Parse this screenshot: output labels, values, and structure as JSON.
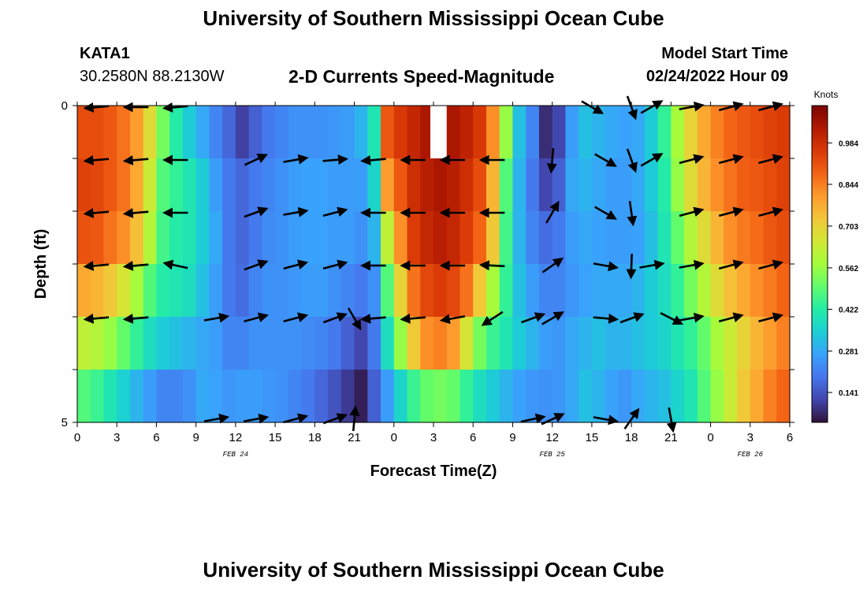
{
  "header": {
    "title": "University of Southern Mississippi Ocean Cube",
    "station": "KATA1",
    "coords": "30.2580N  88.2130W",
    "subtitle": "2-D Currents Speed-Magnitude",
    "model_start_label": "Model Start Time",
    "model_start_value": "02/24/2022 Hour 09"
  },
  "footer": {
    "title": "University of Southern Mississippi Ocean Cube"
  },
  "chart_data": {
    "type": "heatmap",
    "title": "2-D Currents Speed-Magnitude",
    "xlabel": "Forecast Time(Z)",
    "ylabel": "Depth (ft)",
    "x_ticks": [
      "0",
      "3",
      "6",
      "9",
      "12",
      "15",
      "18",
      "21",
      "0",
      "3",
      "6",
      "9",
      "12",
      "15",
      "18",
      "21",
      "0",
      "3",
      "6"
    ],
    "date_labels": [
      {
        "label": "FEB 24",
        "at_hour": 12
      },
      {
        "label": "FEB 25",
        "at_hour": 36
      },
      {
        "label": "FEB 26",
        "at_hour": 51
      }
    ],
    "y_ticks": [
      "0",
      "5"
    ],
    "ylim": [
      0,
      5
    ],
    "x_hours_range": [
      0,
      54
    ],
    "colorbar": {
      "unit": "Knots",
      "ticks": [
        "0.984",
        "0.844",
        "0.703",
        "0.562",
        "0.422",
        "0.281",
        "0.141"
      ],
      "tick_values": [
        0.984,
        0.844,
        0.703,
        0.562,
        0.422,
        0.281,
        0.141
      ],
      "range": [
        0.04,
        1.11
      ],
      "colors": [
        "#30123b",
        "#4145ab",
        "#4675ed",
        "#39a2fc",
        "#1bcfd4",
        "#24eca6",
        "#61fc6c",
        "#a4fc3b",
        "#d1e834",
        "#f3c63a",
        "#fe9b2d",
        "#f36315",
        "#d93806",
        "#b11901",
        "#7a0403"
      ]
    },
    "speed_columns": [
      {
        "hour": 0,
        "speeds": [
          0.92,
          0.94,
          0.91,
          0.78,
          0.62,
          0.48
        ]
      },
      {
        "hour": 1,
        "speeds": [
          0.92,
          0.93,
          0.9,
          0.76,
          0.6,
          0.45
        ]
      },
      {
        "hour": 2,
        "speeds": [
          0.9,
          0.9,
          0.86,
          0.72,
          0.56,
          0.4
        ]
      },
      {
        "hour": 3,
        "speeds": [
          0.86,
          0.86,
          0.82,
          0.66,
          0.5,
          0.35
        ]
      },
      {
        "hour": 4,
        "speeds": [
          0.8,
          0.78,
          0.74,
          0.58,
          0.44,
          0.3
        ]
      },
      {
        "hour": 5,
        "speeds": [
          0.68,
          0.64,
          0.6,
          0.48,
          0.38,
          0.26
        ]
      },
      {
        "hour": 6,
        "speeds": [
          0.52,
          0.48,
          0.46,
          0.42,
          0.34,
          0.22
        ]
      },
      {
        "hour": 7,
        "speeds": [
          0.42,
          0.44,
          0.42,
          0.4,
          0.32,
          0.22
        ]
      },
      {
        "hour": 8,
        "speeds": [
          0.34,
          0.4,
          0.4,
          0.38,
          0.3,
          0.24
        ]
      },
      {
        "hour": 9,
        "speeds": [
          0.28,
          0.34,
          0.34,
          0.32,
          0.28,
          0.28
        ]
      },
      {
        "hour": 10,
        "speeds": [
          0.22,
          0.26,
          0.28,
          0.26,
          0.26,
          0.27
        ]
      },
      {
        "hour": 11,
        "speeds": [
          0.17,
          0.2,
          0.2,
          0.2,
          0.22,
          0.25
        ]
      },
      {
        "hour": 12,
        "speeds": [
          0.11,
          0.17,
          0.17,
          0.18,
          0.22,
          0.26
        ]
      },
      {
        "hour": 13,
        "speeds": [
          0.16,
          0.2,
          0.2,
          0.22,
          0.24,
          0.26
        ]
      },
      {
        "hour": 14,
        "speeds": [
          0.2,
          0.22,
          0.23,
          0.24,
          0.24,
          0.25
        ]
      },
      {
        "hour": 15,
        "speeds": [
          0.22,
          0.24,
          0.24,
          0.24,
          0.24,
          0.24
        ]
      },
      {
        "hour": 16,
        "speeds": [
          0.24,
          0.26,
          0.26,
          0.25,
          0.24,
          0.22
        ]
      },
      {
        "hour": 17,
        "speeds": [
          0.24,
          0.27,
          0.27,
          0.26,
          0.23,
          0.2
        ]
      },
      {
        "hour": 18,
        "speeds": [
          0.24,
          0.27,
          0.27,
          0.26,
          0.22,
          0.17
        ]
      },
      {
        "hour": 19,
        "speeds": [
          0.25,
          0.26,
          0.26,
          0.24,
          0.2,
          0.14
        ]
      },
      {
        "hour": 20,
        "speeds": [
          0.26,
          0.26,
          0.26,
          0.22,
          0.16,
          0.1
        ]
      },
      {
        "hour": 21,
        "speeds": [
          0.3,
          0.26,
          0.24,
          0.2,
          0.12,
          0.06
        ]
      },
      {
        "hour": 22,
        "speeds": [
          0.4,
          0.36,
          0.3,
          0.24,
          0.2,
          0.16
        ]
      },
      {
        "hour": 23,
        "speeds": [
          0.9,
          0.8,
          0.62,
          0.48,
          0.38,
          0.26
        ]
      },
      {
        "hour": 24,
        "speeds": [
          0.96,
          0.9,
          0.82,
          0.7,
          0.56,
          0.36
        ]
      },
      {
        "hour": 25,
        "speeds": [
          1.0,
          0.98,
          0.95,
          0.86,
          0.72,
          0.45
        ]
      },
      {
        "hour": 26,
        "speeds": [
          1.04,
          1.02,
          1.0,
          0.93,
          0.82,
          0.5
        ]
      },
      {
        "hour": 27,
        "speeds": [
          1.05,
          1.04,
          1.02,
          0.95,
          0.84,
          0.52
        ]
      },
      {
        "hour": 28,
        "speeds": [
          1.04,
          1.02,
          1.0,
          0.93,
          0.8,
          0.5
        ]
      },
      {
        "hour": 29,
        "speeds": [
          1.01,
          0.98,
          0.95,
          0.86,
          0.66,
          0.44
        ]
      },
      {
        "hour": 30,
        "speeds": [
          0.96,
          0.92,
          0.88,
          0.72,
          0.52,
          0.38
        ]
      },
      {
        "hour": 31,
        "speeds": [
          0.82,
          0.76,
          0.72,
          0.58,
          0.45,
          0.34
        ]
      },
      {
        "hour": 32,
        "speeds": [
          0.56,
          0.48,
          0.46,
          0.44,
          0.4,
          0.3
        ]
      },
      {
        "hour": 33,
        "speeds": [
          0.32,
          0.3,
          0.3,
          0.32,
          0.34,
          0.27
        ]
      },
      {
        "hour": 34,
        "speeds": [
          0.22,
          0.2,
          0.22,
          0.26,
          0.3,
          0.25
        ]
      },
      {
        "hour": 35,
        "speeds": [
          0.08,
          0.12,
          0.18,
          0.22,
          0.26,
          0.24
        ]
      },
      {
        "hour": 36,
        "speeds": [
          0.12,
          0.16,
          0.2,
          0.22,
          0.25,
          0.25
        ]
      },
      {
        "hour": 37,
        "speeds": [
          0.26,
          0.28,
          0.26,
          0.25,
          0.28,
          0.28
        ]
      },
      {
        "hour": 38,
        "speeds": [
          0.32,
          0.3,
          0.28,
          0.27,
          0.3,
          0.32
        ]
      },
      {
        "hour": 39,
        "speeds": [
          0.3,
          0.28,
          0.27,
          0.28,
          0.32,
          0.3
        ]
      },
      {
        "hour": 40,
        "speeds": [
          0.28,
          0.26,
          0.26,
          0.28,
          0.3,
          0.27
        ]
      },
      {
        "hour": 41,
        "speeds": [
          0.27,
          0.26,
          0.26,
          0.28,
          0.3,
          0.25
        ]
      },
      {
        "hour": 42,
        "speeds": [
          0.28,
          0.28,
          0.27,
          0.3,
          0.32,
          0.28
        ]
      },
      {
        "hour": 43,
        "speeds": [
          0.34,
          0.34,
          0.32,
          0.34,
          0.34,
          0.3
        ]
      },
      {
        "hour": 44,
        "speeds": [
          0.44,
          0.42,
          0.4,
          0.38,
          0.36,
          0.32
        ]
      },
      {
        "hour": 45,
        "speeds": [
          0.58,
          0.56,
          0.5,
          0.44,
          0.4,
          0.36
        ]
      },
      {
        "hour": 46,
        "speeds": [
          0.7,
          0.68,
          0.6,
          0.52,
          0.44,
          0.4
        ]
      },
      {
        "hour": 47,
        "speeds": [
          0.78,
          0.76,
          0.68,
          0.6,
          0.5,
          0.48
        ]
      },
      {
        "hour": 48,
        "speeds": [
          0.84,
          0.82,
          0.76,
          0.68,
          0.58,
          0.56
        ]
      },
      {
        "hour": 49,
        "speeds": [
          0.88,
          0.86,
          0.82,
          0.74,
          0.64,
          0.64
        ]
      },
      {
        "hour": 50,
        "speeds": [
          0.9,
          0.89,
          0.85,
          0.78,
          0.7,
          0.72
        ]
      },
      {
        "hour": 51,
        "speeds": [
          0.92,
          0.9,
          0.87,
          0.82,
          0.76,
          0.78
        ]
      },
      {
        "hour": 52,
        "speeds": [
          0.94,
          0.92,
          0.9,
          0.85,
          0.8,
          0.84
        ]
      },
      {
        "hour": 53,
        "speeds": [
          0.95,
          0.94,
          0.92,
          0.88,
          0.84,
          0.88
        ]
      }
    ],
    "missing_cells": [
      {
        "hour": 27,
        "layer": 0
      }
    ],
    "arrows": [
      {
        "hour": 1.5,
        "angles": [
          185,
          185,
          185,
          185,
          185,
          null
        ]
      },
      {
        "hour": 4.5,
        "angles": [
          180,
          185,
          185,
          185,
          185,
          null
        ]
      },
      {
        "hour": 7.5,
        "angles": [
          185,
          180,
          180,
          168,
          null,
          null
        ]
      },
      {
        "hour": 10.5,
        "angles": [
          null,
          null,
          null,
          null,
          10,
          10
        ]
      },
      {
        "hour": 13.5,
        "angles": [
          null,
          25,
          20,
          20,
          15,
          10
        ]
      },
      {
        "hour": 16.5,
        "angles": [
          null,
          10,
          10,
          15,
          15,
          15
        ]
      },
      {
        "hour": 19.5,
        "angles": [
          null,
          5,
          15,
          15,
          20,
          20
        ]
      },
      {
        "hour": 20.0,
        "angles": [
          null,
          null,
          null,
          null,
          null,
          null
        ]
      },
      {
        "hour": 21.0,
        "angles": [
          null,
          null,
          null,
          null,
          300,
          85
        ]
      },
      {
        "hour": 22.5,
        "angles": [
          null,
          185,
          180,
          180,
          185,
          null
        ]
      },
      {
        "hour": 25.5,
        "angles": [
          null,
          180,
          180,
          180,
          185,
          null
        ]
      },
      {
        "hour": 28.5,
        "angles": [
          null,
          180,
          180,
          180,
          190,
          null
        ]
      },
      {
        "hour": 31.5,
        "angles": [
          null,
          180,
          180,
          177,
          213,
          null
        ]
      },
      {
        "hour": 34.5,
        "angles": [
          null,
          null,
          null,
          null,
          20,
          12
        ]
      },
      {
        "hour": 36.0,
        "angles": [
          null,
          265,
          60,
          35,
          30,
          25
        ]
      },
      {
        "hour": 39.0,
        "angles": [
          330,
          null,
          null,
          null,
          null,
          null
        ]
      },
      {
        "hour": 40.0,
        "angles": [
          null,
          330,
          330,
          350,
          355,
          350
        ]
      },
      {
        "hour": 42.0,
        "angles": [
          290,
          290,
          278,
          268,
          20,
          55
        ]
      },
      {
        "hour": 43.5,
        "angles": [
          30,
          30,
          null,
          10,
          null,
          null
        ]
      },
      {
        "hour": 45.0,
        "angles": [
          null,
          null,
          null,
          null,
          333,
          280
        ]
      },
      {
        "hour": 46.5,
        "angles": [
          10,
          15,
          15,
          10,
          10,
          null
        ]
      },
      {
        "hour": 49.5,
        "angles": [
          15,
          15,
          15,
          15,
          15,
          null
        ]
      },
      {
        "hour": 52.5,
        "angles": [
          15,
          15,
          15,
          15,
          15,
          null
        ]
      }
    ]
  }
}
